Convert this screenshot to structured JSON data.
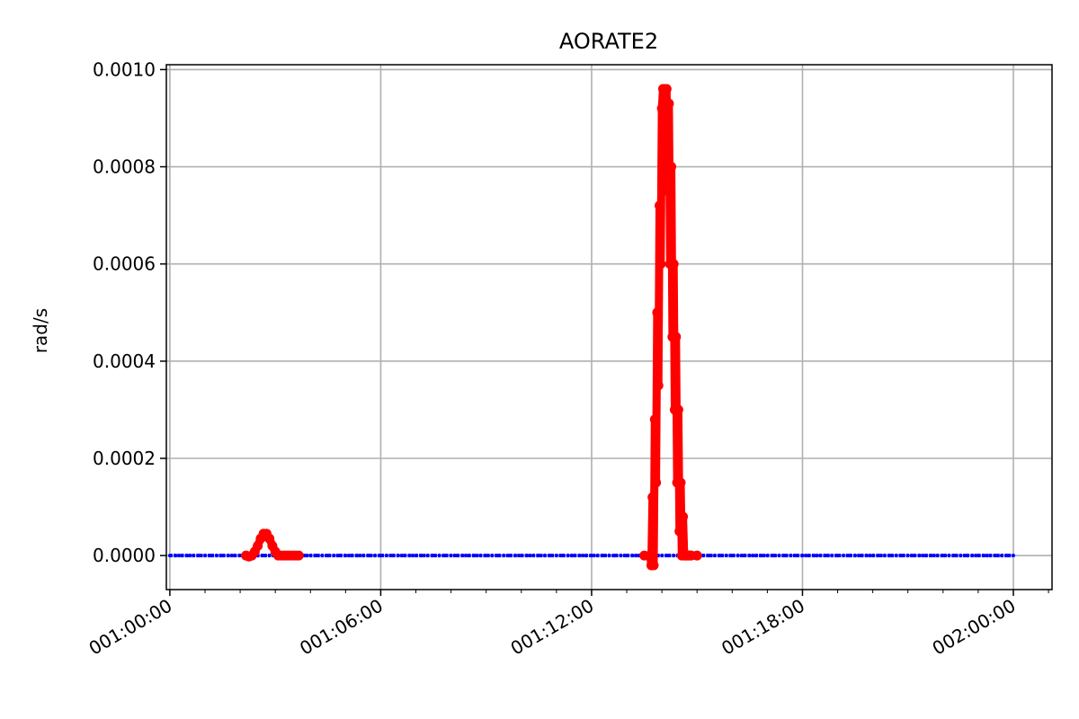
{
  "chart_data": {
    "type": "line",
    "title": "AORATE2",
    "xlabel": "",
    "ylabel": "rad/s",
    "x_unit": "time (DDD:HH:MM)",
    "xlim": [
      "000:23:54",
      "002:01:06"
    ],
    "ylim": [
      -7e-05,
      0.00101
    ],
    "grid": true,
    "x_ticks": [
      {
        "value": "001:00:00",
        "label": "001:00:00"
      },
      {
        "value": "001:06:00",
        "label": "001:06:00"
      },
      {
        "value": "001:12:00",
        "label": "001:12:00"
      },
      {
        "value": "001:18:00",
        "label": "001:18:00"
      },
      {
        "value": "002:00:00",
        "label": "002:00:00"
      }
    ],
    "y_ticks": [
      {
        "value": 0.0,
        "label": "0.0000"
      },
      {
        "value": 0.0002,
        "label": "0.0002"
      },
      {
        "value": 0.0004,
        "label": "0.0004"
      },
      {
        "value": 0.0006,
        "label": "0.0006"
      },
      {
        "value": 0.0008,
        "label": "0.0008"
      },
      {
        "value": 0.001,
        "label": "0.0010"
      }
    ],
    "series": [
      {
        "color": "#0000ff",
        "style": "points",
        "x": [
          "001:00:00",
          "002:00:00"
        ],
        "y": [
          0.0,
          0.0
        ]
      },
      {
        "color": "#ff0000",
        "style": "thick-line",
        "x": [
          "001:02:10",
          "001:02:15",
          "001:02:20",
          "001:02:25",
          "001:02:30",
          "001:02:35",
          "001:02:40",
          "001:02:45",
          "001:02:50",
          "001:02:55",
          "001:03:00",
          "001:03:05",
          "001:03:10",
          "001:03:15",
          "001:03:20",
          "001:03:25",
          "001:03:30",
          "001:03:35",
          "001:03:40"
        ],
        "y": [
          0.0,
          -2e-06,
          0.0,
          8e-06,
          2e-05,
          3.5e-05,
          4.5e-05,
          4.5e-05,
          3.5e-05,
          2e-05,
          8e-06,
          0.0,
          0.0,
          0.0,
          0.0,
          0.0,
          0.0,
          0.0,
          0.0
        ]
      },
      {
        "color": "#ff0000",
        "style": "thick-line",
        "x": [
          "001:13:30",
          "001:13:40",
          "001:13:42",
          "001:13:44",
          "001:13:46",
          "001:13:48",
          "001:13:50",
          "001:13:52",
          "001:13:54",
          "001:13:56",
          "001:13:58",
          "001:14:00",
          "001:14:02",
          "001:14:04",
          "001:14:06",
          "001:14:08",
          "001:14:10",
          "001:14:12",
          "001:14:14",
          "001:14:16",
          "001:14:18",
          "001:14:20",
          "001:14:22",
          "001:14:24",
          "001:14:26",
          "001:14:28",
          "001:14:30",
          "001:14:32",
          "001:14:34",
          "001:14:36",
          "001:14:38",
          "001:14:40",
          "001:14:42",
          "001:14:44",
          "001:14:46",
          "001:14:48",
          "001:14:50",
          "001:15:00"
        ],
        "y": [
          0.0,
          0.0,
          -2e-05,
          0.00012,
          -2e-05,
          0.00028,
          0.00015,
          0.0005,
          0.00035,
          0.00072,
          0.0006,
          0.00092,
          0.00096,
          0.00096,
          0.0009,
          0.00096,
          0.00075,
          0.00093,
          0.0006,
          0.0008,
          0.00045,
          0.0006,
          0.0003,
          0.00045,
          0.00015,
          0.0003,
          5e-05,
          0.00015,
          0.0,
          8e-05,
          0.0,
          0.0,
          0.0,
          0.0,
          0.0,
          0.0,
          0.0,
          0.0
        ]
      }
    ]
  }
}
